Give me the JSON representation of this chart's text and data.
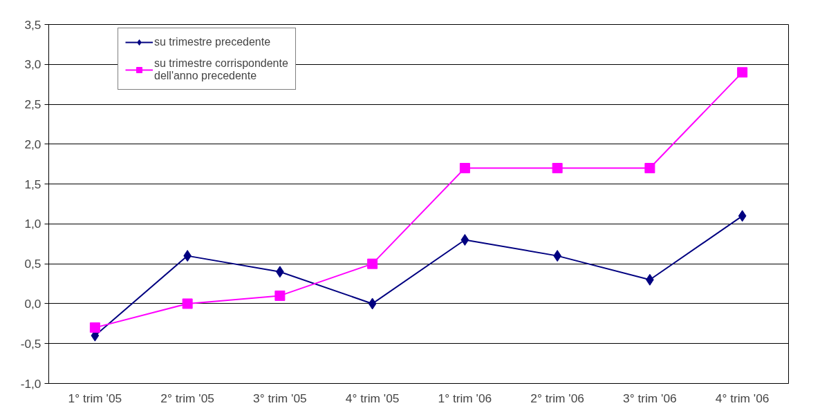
{
  "chart_data": {
    "type": "line",
    "categories": [
      "1° trim '05",
      "2° trim '05",
      "3° trim '05",
      "4° trim '05",
      "1° trim '06",
      "2° trim '06",
      "3° trim '06",
      "4° trim '06"
    ],
    "series": [
      {
        "name": "su trimestre precedente",
        "color": "#000080",
        "marker": "diamond",
        "values": [
          -0.4,
          0.6,
          0.4,
          0.0,
          0.8,
          0.6,
          0.3,
          1.1
        ]
      },
      {
        "name": "su trimestre corrispondente\ndell'anno precedente",
        "color": "#ff00ff",
        "marker": "square",
        "values": [
          -0.3,
          0.0,
          0.1,
          0.5,
          1.7,
          1.7,
          1.7,
          2.9
        ]
      }
    ],
    "ylim": [
      -1.0,
      3.5
    ],
    "yticks": [
      {
        "value": -1.0,
        "label": "-1,0"
      },
      {
        "value": -0.5,
        "label": "-0,5"
      },
      {
        "value": 0.0,
        "label": "0,0"
      },
      {
        "value": 0.5,
        "label": "0,5"
      },
      {
        "value": 1.0,
        "label": "1,0"
      },
      {
        "value": 1.5,
        "label": "1,5"
      },
      {
        "value": 2.0,
        "label": "2,0"
      },
      {
        "value": 2.5,
        "label": "2,5"
      },
      {
        "value": 3.0,
        "label": "3,0"
      },
      {
        "value": 3.5,
        "label": "3,5"
      }
    ],
    "grid": "y",
    "legend": "top left",
    "line_style": "solid"
  }
}
